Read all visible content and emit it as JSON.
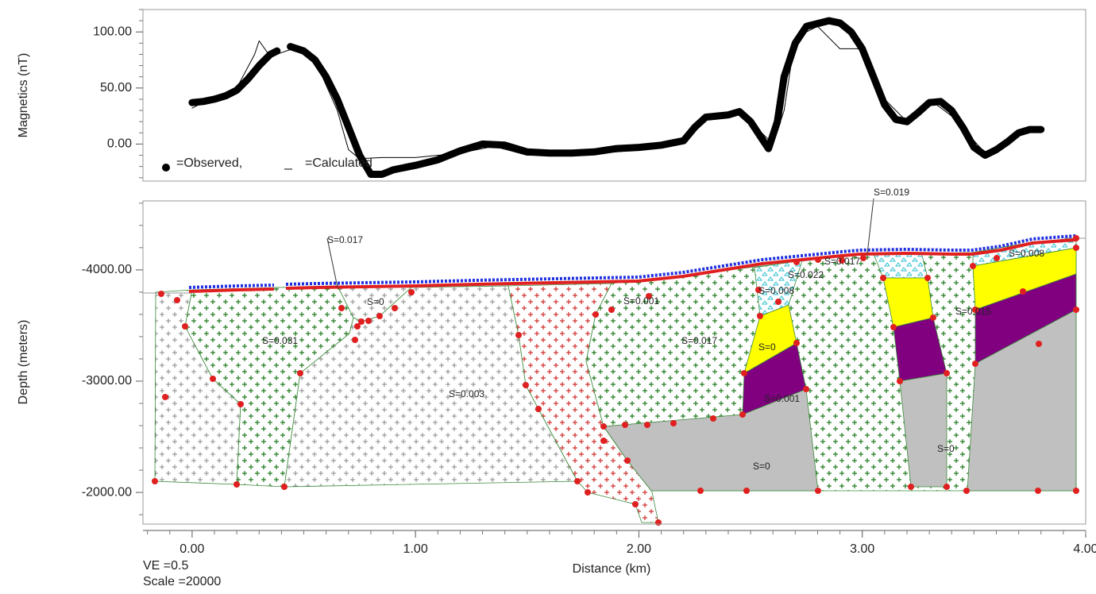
{
  "chart_data": [
    {
      "type": "line",
      "y_label": "Magnetics (nT)",
      "xlim": [
        -0.22,
        4.0
      ],
      "ylim": [
        -33,
        120
      ],
      "yticks": [
        {
          "value": 0,
          "label": "0.00"
        },
        {
          "value": 50,
          "label": "50.00"
        },
        {
          "value": 100,
          "label": "100.00"
        }
      ],
      "series": [
        {
          "name": "=Observed,",
          "color": "#000000",
          "marker": "dot",
          "x": [
            0.0,
            0.05,
            0.1,
            0.15,
            0.2,
            0.25,
            0.3,
            0.35,
            0.38,
            0.41,
            0.44,
            0.5,
            0.55,
            0.6,
            0.65,
            0.7,
            0.75,
            0.8,
            0.85,
            0.9,
            1.0,
            1.1,
            1.2,
            1.3,
            1.4,
            1.5,
            1.6,
            1.7,
            1.8,
            1.9,
            2.0,
            2.1,
            2.2,
            2.25,
            2.3,
            2.35,
            2.4,
            2.45,
            2.5,
            2.55,
            2.58,
            2.62,
            2.65,
            2.7,
            2.75,
            2.85,
            2.9,
            2.95,
            3.0,
            3.05,
            3.1,
            3.15,
            3.2,
            3.25,
            3.3,
            3.35,
            3.4,
            3.45,
            3.5,
            3.55,
            3.6,
            3.65,
            3.7,
            3.75,
            3.8
          ],
          "values": [
            37,
            38,
            40,
            43,
            48,
            58,
            70,
            80,
            83,
            null,
            87,
            83,
            75,
            60,
            40,
            15,
            -10,
            -27,
            -27,
            -23,
            -19,
            -14,
            -6,
            0,
            -1,
            -7,
            -8,
            -8,
            -7,
            -4,
            -3,
            -1,
            3,
            15,
            24,
            25,
            26,
            29,
            20,
            5,
            -4,
            20,
            60,
            90,
            105,
            110,
            108,
            100,
            85,
            60,
            35,
            22,
            20,
            28,
            37,
            38,
            30,
            15,
            -3,
            -10,
            -5,
            2,
            10,
            13,
            13
          ]
        },
        {
          "name": "=Calculated",
          "color": "#000000",
          "marker": "none",
          "x": [
            0.0,
            0.1,
            0.2,
            0.28,
            0.3,
            0.35,
            0.45,
            0.55,
            0.65,
            0.7,
            0.75,
            0.85,
            1.0,
            1.2,
            1.35,
            1.5,
            1.7,
            1.9,
            2.1,
            2.2,
            2.3,
            2.45,
            2.5,
            2.6,
            2.65,
            2.7,
            2.8,
            2.9,
            3.0,
            3.1,
            3.2,
            3.3,
            3.4,
            3.5,
            3.55,
            3.7,
            3.8
          ],
          "values": [
            32,
            42,
            50,
            80,
            92,
            78,
            85,
            75,
            30,
            -5,
            -13,
            -12,
            -12,
            -8,
            -2,
            -10,
            -10,
            -7,
            -3,
            4,
            25,
            30,
            20,
            0,
            30,
            95,
            105,
            85,
            85,
            40,
            20,
            40,
            25,
            3,
            -8,
            10,
            12
          ]
        }
      ]
    },
    {
      "type": "section",
      "x_label": "Distance (km)",
      "y_label": "Depth (meters)",
      "xlim": [
        -0.22,
        4.0
      ],
      "ylim": [
        -1715,
        -4620
      ],
      "xticks": [
        {
          "value": 0,
          "label": "0.00"
        },
        {
          "value": 1,
          "label": "1.00"
        },
        {
          "value": 2,
          "label": "2.00"
        },
        {
          "value": 3,
          "label": "3.00"
        },
        {
          "value": 4,
          "label": "4.00"
        }
      ],
      "yticks": [
        {
          "value": -4000,
          "label": "-4000.00"
        },
        {
          "value": -3000,
          "label": "-3000.00"
        },
        {
          "value": -2000,
          "label": "-2000.00"
        }
      ],
      "annotations": [
        "S=0.017",
        "S=0",
        "S=0.031",
        "S=0.003",
        "S=0.001",
        "S=0.017",
        "S=0.022",
        "S=0.008",
        "S=0",
        "S=0.001",
        "S=0",
        "S=0.017",
        "S=0.019",
        "S=0.015",
        "S=0.008",
        "S=0"
      ]
    }
  ],
  "footer": {
    "ve": "VE =0.5",
    "scale": "Scale =20000"
  }
}
